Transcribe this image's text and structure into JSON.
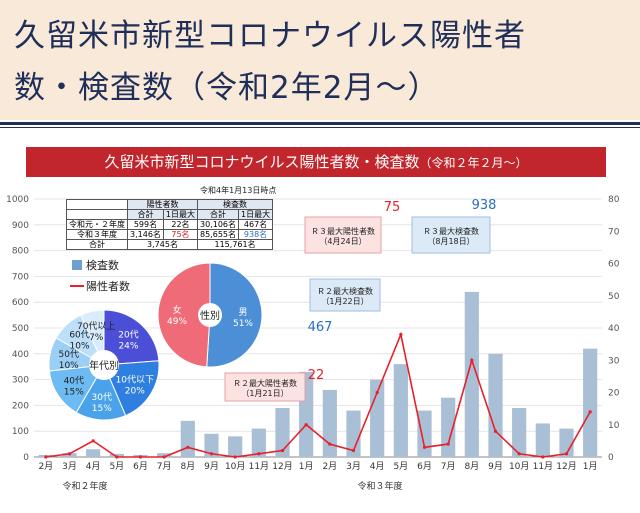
{
  "page": {
    "title_line1": "久留米市新型コロナウイルス陽性者",
    "title_line2": "数・検査数（令和2年2月～）"
  },
  "slide": {
    "banner_main": "久留米市新型コロナウイルス陽性者数・検査数",
    "banner_sub": "（令和２年２月～）",
    "as_of": "令和4年1月13日時点",
    "year_label_r2": "令和２年度",
    "year_label_r3": "令和３年度",
    "colors": {
      "banner": "#c0262c",
      "positive": "#e8202a",
      "tests": "#a9bfd6",
      "title_text": "#1f2f5a",
      "title_bg": "#f8e9d8"
    }
  },
  "summary_table": {
    "headers": [
      "",
      "陽性者数",
      "検査数"
    ],
    "subheaders": [
      "",
      "合計",
      "1日最大",
      "合計",
      "1日最大"
    ],
    "rows": [
      [
        "令和元・２年度",
        "599名",
        "22名",
        "30,106名",
        "467名"
      ],
      [
        "令和３年度",
        "3,146名",
        "75名",
        "85,655名",
        "938名"
      ],
      [
        "合計",
        "3,745名",
        "",
        "115,761名",
        ""
      ]
    ]
  },
  "legend": {
    "tests": "検査数",
    "positive": "陽性者数"
  },
  "annotations": {
    "r3_max_pos_title": "Ｒ３最大陽性者数",
    "r3_max_pos_date": "（4月24日）",
    "r3_max_pos_value": "75",
    "r3_max_test_title": "Ｒ３最大検査数",
    "r3_max_test_date": "（8月18日）",
    "r3_max_test_value": "938",
    "r2_max_test_title": "Ｒ２最大検査数",
    "r2_max_test_date": "（1月22日）",
    "r2_max_test_value": "467",
    "r2_max_pos_title": "Ｒ２最大陽性者数",
    "r2_max_pos_date": "（1月21日）",
    "r2_max_pos_value": "22"
  },
  "pie_gender": {
    "center_label": "性別",
    "slices": [
      {
        "label": "男",
        "pct": "51%",
        "value": 51,
        "color": "#4d8fd6"
      },
      {
        "label": "女",
        "pct": "49%",
        "value": 49,
        "color": "#f06b78"
      }
    ]
  },
  "pie_age": {
    "center_label": "年代別",
    "slices": [
      {
        "label": "20代",
        "pct": "24%",
        "value": 24,
        "color": "#4b4fd8"
      },
      {
        "label": "10代以下",
        "pct": "20%",
        "value": 20,
        "color": "#2e7fe0"
      },
      {
        "label": "30代",
        "pct": "15%",
        "value": 15,
        "color": "#4aa3ea"
      },
      {
        "label": "40代",
        "pct": "15%",
        "value": 15,
        "color": "#6dbbf2"
      },
      {
        "label": "50代",
        "pct": "10%",
        "value": 10,
        "color": "#9ccff6"
      },
      {
        "label": "60代",
        "pct": "10%",
        "value": 10,
        "color": "#bddffa"
      },
      {
        "label": "70代以上",
        "pct": "7%",
        "value": 7,
        "color": "#d9ecfc"
      }
    ]
  },
  "chart_data": {
    "type": "bar",
    "x_tick_labels": [
      "2月",
      "3月",
      "4月",
      "5月",
      "6月",
      "7月",
      "8月",
      "9月",
      "10月",
      "11月",
      "12月",
      "1月",
      "2月",
      "3月",
      "4月",
      "5月",
      "6月",
      "7月",
      "8月",
      "9月",
      "10月",
      "11月",
      "12月",
      "1月"
    ],
    "left_axis_ticks": [
      0,
      100,
      200,
      300,
      400,
      500,
      600,
      700,
      800,
      900,
      1000
    ],
    "right_axis_ticks": [
      0,
      10,
      20,
      30,
      40,
      50,
      60,
      70,
      80
    ],
    "left_ylim": [
      0,
      1000
    ],
    "right_ylim": [
      0,
      80
    ],
    "series": [
      {
        "name": "検査数",
        "kind": "bar",
        "axis": "left",
        "x": [
          "2月",
          "3月",
          "4月",
          "5月",
          "6月",
          "7月",
          "8月",
          "9月",
          "10月",
          "11月",
          "12月",
          "1月",
          "2月",
          "3月",
          "4月",
          "5月",
          "6月",
          "7月",
          "8月",
          "9月",
          "10月",
          "11月",
          "12月",
          "1月"
        ],
        "values": [
          8,
          15,
          30,
          12,
          8,
          15,
          140,
          90,
          80,
          110,
          190,
          330,
          260,
          180,
          300,
          360,
          180,
          230,
          640,
          400,
          190,
          130,
          110,
          420
        ]
      },
      {
        "name": "陽性者数",
        "kind": "line",
        "axis": "right",
        "x": [
          "2月",
          "3月",
          "4月",
          "5月",
          "6月",
          "7月",
          "8月",
          "9月",
          "10月",
          "11月",
          "12月",
          "1月",
          "2月",
          "3月",
          "4月",
          "5月",
          "6月",
          "7月",
          "8月",
          "9月",
          "10月",
          "11月",
          "12月",
          "1月"
        ],
        "values": [
          0,
          1,
          5,
          0,
          0,
          0,
          3,
          1,
          0,
          1,
          2,
          10,
          4,
          2,
          20,
          38,
          3,
          4,
          30,
          8,
          1,
          0,
          1,
          14
        ]
      }
    ],
    "maxima": [
      {
        "label": "R2最大陽性者数",
        "value": 22,
        "date": "1月21日"
      },
      {
        "label": "R2最大検査数",
        "value": 467,
        "date": "1月22日"
      },
      {
        "label": "R3最大陽性者数",
        "value": 75,
        "date": "4月24日"
      },
      {
        "label": "R3最大検査数",
        "value": 938,
        "date": "8月18日"
      }
    ]
  }
}
